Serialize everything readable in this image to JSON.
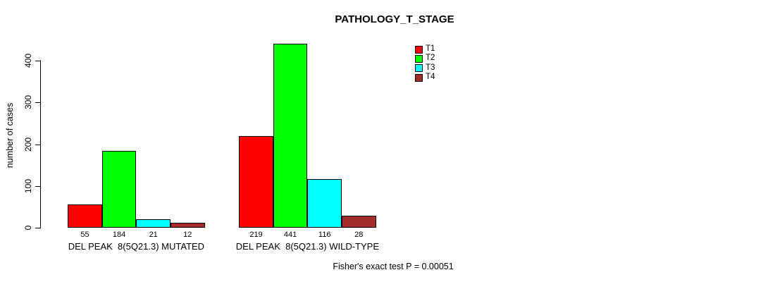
{
  "title": "PATHOLOGY_T_STAGE",
  "caption": "Fisher's exact test P = 0.00051",
  "colors": {
    "background": "#FFFFFF",
    "axis": "#000000",
    "text": "#000000",
    "t1": "#FF0000",
    "t2": "#00FF00",
    "t3": "#00FFFF",
    "t4": "#A52A2A"
  },
  "chart_data": {
    "type": "bar",
    "title": "PATHOLOGY_T_STAGE",
    "xlabel": "",
    "ylabel": "number of cases",
    "ylim": [
      0,
      450
    ],
    "yticks": [
      0,
      100,
      200,
      300,
      400
    ],
    "grid": false,
    "legend_position": "top-right",
    "bar_value_labels": true,
    "categories": [
      "DEL PEAK  8(5Q21.3) MUTATED",
      "DEL PEAK  8(5Q21.3) WILD-TYPE"
    ],
    "series": [
      {
        "name": "T1",
        "color": "#FF0000",
        "values": [
          55,
          219
        ]
      },
      {
        "name": "T2",
        "color": "#00FF00",
        "values": [
          184,
          441
        ]
      },
      {
        "name": "T3",
        "color": "#00FFFF",
        "values": [
          21,
          116
        ]
      },
      {
        "name": "T4",
        "color": "#A52A2A",
        "values": [
          12,
          28
        ]
      }
    ],
    "annotation": "Fisher's exact test P = 0.00051"
  }
}
